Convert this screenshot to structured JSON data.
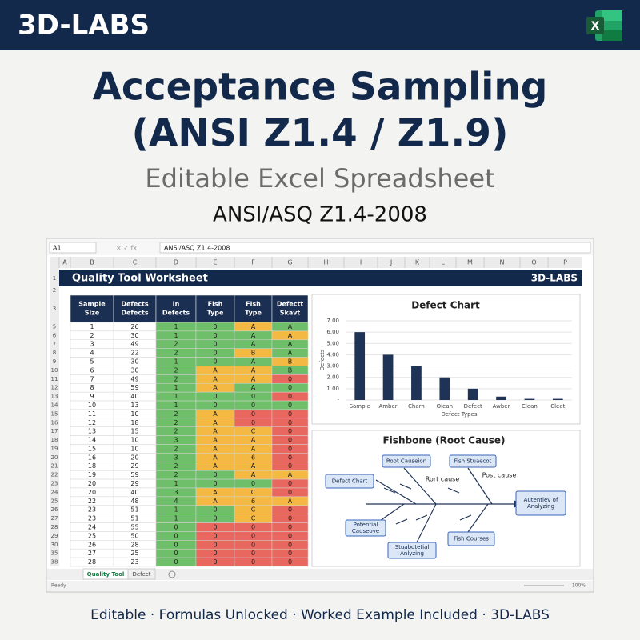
{
  "header": {
    "brand": "3D-LABS"
  },
  "hero": {
    "title_lines": [
      "Acceptance Sampling",
      "(ANSI Z1.4 / Z1.9)"
    ],
    "subtitle": "Editable Excel Spreadsheet",
    "standard": "ANSI/ASQ Z1.4-2008"
  },
  "sheet": {
    "name_box": "A1",
    "formula": "ANSI/ASQ Z1.4-2008",
    "columns": [
      "A",
      "B",
      "C",
      "D",
      "E",
      "F",
      "G",
      "H",
      "I",
      "J",
      "K",
      "L",
      "M",
      "N",
      "O",
      "P"
    ],
    "top_rows": [
      1,
      2,
      3
    ],
    "banner": {
      "title": "Quality Tool Worksheet",
      "brand": "3D-LABS"
    },
    "cell_colors": {
      "g": "#6fbf6a",
      "o": "#f4b942",
      "r": "#e8675e"
    },
    "table": {
      "headers": [
        [
          "Sample",
          "Size"
        ],
        [
          "Defects",
          "Defects"
        ],
        [
          "In",
          "Defects"
        ],
        [
          "Fish",
          "Type"
        ],
        [
          "Fish",
          "Type"
        ],
        [
          "Defectt",
          "Skavt"
        ]
      ],
      "rows": [
        {
          "n": 5,
          "cells": [
            1,
            26,
            1,
            0,
            "A",
            "A"
          ],
          "fills": [
            "g",
            "g",
            "o",
            "g"
          ]
        },
        {
          "n": 6,
          "cells": [
            2,
            30,
            1,
            0,
            "A",
            "A"
          ],
          "fills": [
            "g",
            "g",
            "g",
            "o"
          ]
        },
        {
          "n": 7,
          "cells": [
            3,
            49,
            2,
            0,
            "A",
            "A"
          ],
          "fills": [
            "g",
            "g",
            "g",
            "g"
          ]
        },
        {
          "n": 8,
          "cells": [
            4,
            22,
            2,
            0,
            "B",
            "A"
          ],
          "fills": [
            "g",
            "g",
            "o",
            "g"
          ]
        },
        {
          "n": 9,
          "cells": [
            5,
            30,
            1,
            0,
            "A",
            "B"
          ],
          "fills": [
            "g",
            "g",
            "g",
            "o"
          ]
        },
        {
          "n": 10,
          "cells": [
            6,
            30,
            2,
            "A",
            "A",
            "B"
          ],
          "fills": [
            "g",
            "o",
            "o",
            "g"
          ]
        },
        {
          "n": 11,
          "cells": [
            7,
            49,
            2,
            "A",
            "A",
            0
          ],
          "fills": [
            "g",
            "o",
            "o",
            "r"
          ]
        },
        {
          "n": 12,
          "cells": [
            8,
            59,
            1,
            "A",
            "A",
            0
          ],
          "fills": [
            "g",
            "o",
            "g",
            "g"
          ]
        },
        {
          "n": 13,
          "cells": [
            9,
            40,
            1,
            0,
            0,
            0
          ],
          "fills": [
            "g",
            "g",
            "g",
            "r"
          ]
        },
        {
          "n": 14,
          "cells": [
            10,
            13,
            1,
            0,
            0,
            0
          ],
          "fills": [
            "g",
            "g",
            "g",
            "g"
          ]
        },
        {
          "n": 15,
          "cells": [
            11,
            10,
            2,
            "A",
            0,
            0
          ],
          "fills": [
            "g",
            "o",
            "r",
            "r"
          ]
        },
        {
          "n": 16,
          "cells": [
            12,
            18,
            2,
            "A",
            0,
            0
          ],
          "fills": [
            "g",
            "o",
            "r",
            "r"
          ]
        },
        {
          "n": 17,
          "cells": [
            13,
            15,
            2,
            "A",
            "C",
            0
          ],
          "fills": [
            "g",
            "o",
            "o",
            "r"
          ]
        },
        {
          "n": 18,
          "cells": [
            14,
            10,
            3,
            "A",
            "A",
            0
          ],
          "fills": [
            "g",
            "o",
            "o",
            "r"
          ]
        },
        {
          "n": 19,
          "cells": [
            15,
            10,
            2,
            "A",
            "A",
            0
          ],
          "fills": [
            "g",
            "o",
            "o",
            "r"
          ]
        },
        {
          "n": 20,
          "cells": [
            16,
            20,
            3,
            "A",
            6,
            0
          ],
          "fills": [
            "g",
            "o",
            "o",
            "r"
          ]
        },
        {
          "n": 21,
          "cells": [
            18,
            29,
            2,
            "A",
            "A",
            0
          ],
          "fills": [
            "g",
            "o",
            "o",
            "r"
          ]
        },
        {
          "n": 22,
          "cells": [
            19,
            59,
            2,
            0,
            "A",
            "A"
          ],
          "fills": [
            "g",
            "g",
            "o",
            "o"
          ]
        },
        {
          "n": 23,
          "cells": [
            20,
            29,
            1,
            0,
            0,
            0
          ],
          "fills": [
            "g",
            "g",
            "g",
            "r"
          ]
        },
        {
          "n": 24,
          "cells": [
            20,
            40,
            3,
            "A",
            "C",
            0
          ],
          "fills": [
            "g",
            "o",
            "o",
            "r"
          ]
        },
        {
          "n": 25,
          "cells": [
            22,
            48,
            4,
            "A",
            6,
            "A"
          ],
          "fills": [
            "g",
            "o",
            "o",
            "o"
          ]
        },
        {
          "n": 26,
          "cells": [
            23,
            51,
            1,
            0,
            "C",
            0
          ],
          "fills": [
            "g",
            "g",
            "o",
            "r"
          ]
        },
        {
          "n": 27,
          "cells": [
            23,
            51,
            1,
            0,
            "C",
            0
          ],
          "fills": [
            "g",
            "g",
            "o",
            "r"
          ]
        },
        {
          "n": 28,
          "cells": [
            24,
            55,
            0,
            0,
            0,
            0
          ],
          "fills": [
            "g",
            "r",
            "r",
            "r"
          ]
        },
        {
          "n": 29,
          "cells": [
            25,
            50,
            0,
            0,
            0,
            0
          ],
          "fills": [
            "g",
            "r",
            "r",
            "r"
          ]
        },
        {
          "n": 30,
          "cells": [
            26,
            28,
            0,
            0,
            0,
            0
          ],
          "fills": [
            "g",
            "r",
            "r",
            "r"
          ]
        },
        {
          "n": 35,
          "cells": [
            27,
            25,
            0,
            0,
            0,
            0
          ],
          "fills": [
            "g",
            "r",
            "r",
            "r"
          ]
        },
        {
          "n": 38,
          "cells": [
            28,
            23,
            0,
            0,
            0,
            0
          ],
          "fills": [
            "g",
            "r",
            "r",
            "r"
          ]
        }
      ]
    },
    "tabs": [
      "Quality Tool",
      "Defect"
    ],
    "status": "Ready",
    "zoom": "100%"
  },
  "chart_data": {
    "type": "bar",
    "title": "Defect Chart",
    "y_label": "Defects",
    "x_label": "Defect Types",
    "categories": [
      "Sample",
      "Amber",
      "Charn",
      "Oiean",
      "Defect",
      "Awber",
      "Clean",
      "Cleat"
    ],
    "values": [
      6,
      4,
      3,
      2,
      1,
      0.3,
      0.1,
      0.1
    ],
    "color": "#1f3356",
    "ylim": [
      0,
      7
    ],
    "yticks": [
      {
        "value": 0,
        "label": "-"
      },
      {
        "value": 1,
        "label": "1.00"
      },
      {
        "value": 2,
        "label": "2.00"
      },
      {
        "value": 3,
        "label": "3.00"
      },
      {
        "value": 4,
        "label": "4.00"
      },
      {
        "value": 5,
        "label": "5.00"
      },
      {
        "value": 6,
        "label": "6.00"
      },
      {
        "value": 7,
        "label": "7.00"
      }
    ],
    "grid": true
  },
  "fishbone": {
    "title": "Fishbone (Root Cause)",
    "boxes": [
      "Root Causeion",
      "Fish Stuaecot",
      "Defect Chart",
      [
        "Potential",
        "Causeove"
      ],
      [
        "Stuabotetial",
        "Anlyzing"
      ],
      "Fish Courses",
      [
        "Autentiev of",
        "Analyzing"
      ]
    ],
    "labels": [
      "Rort cause",
      "Post cause"
    ]
  },
  "footer": "Editable · Formulas Unlocked · Worked Example Included · 3D-LABS"
}
